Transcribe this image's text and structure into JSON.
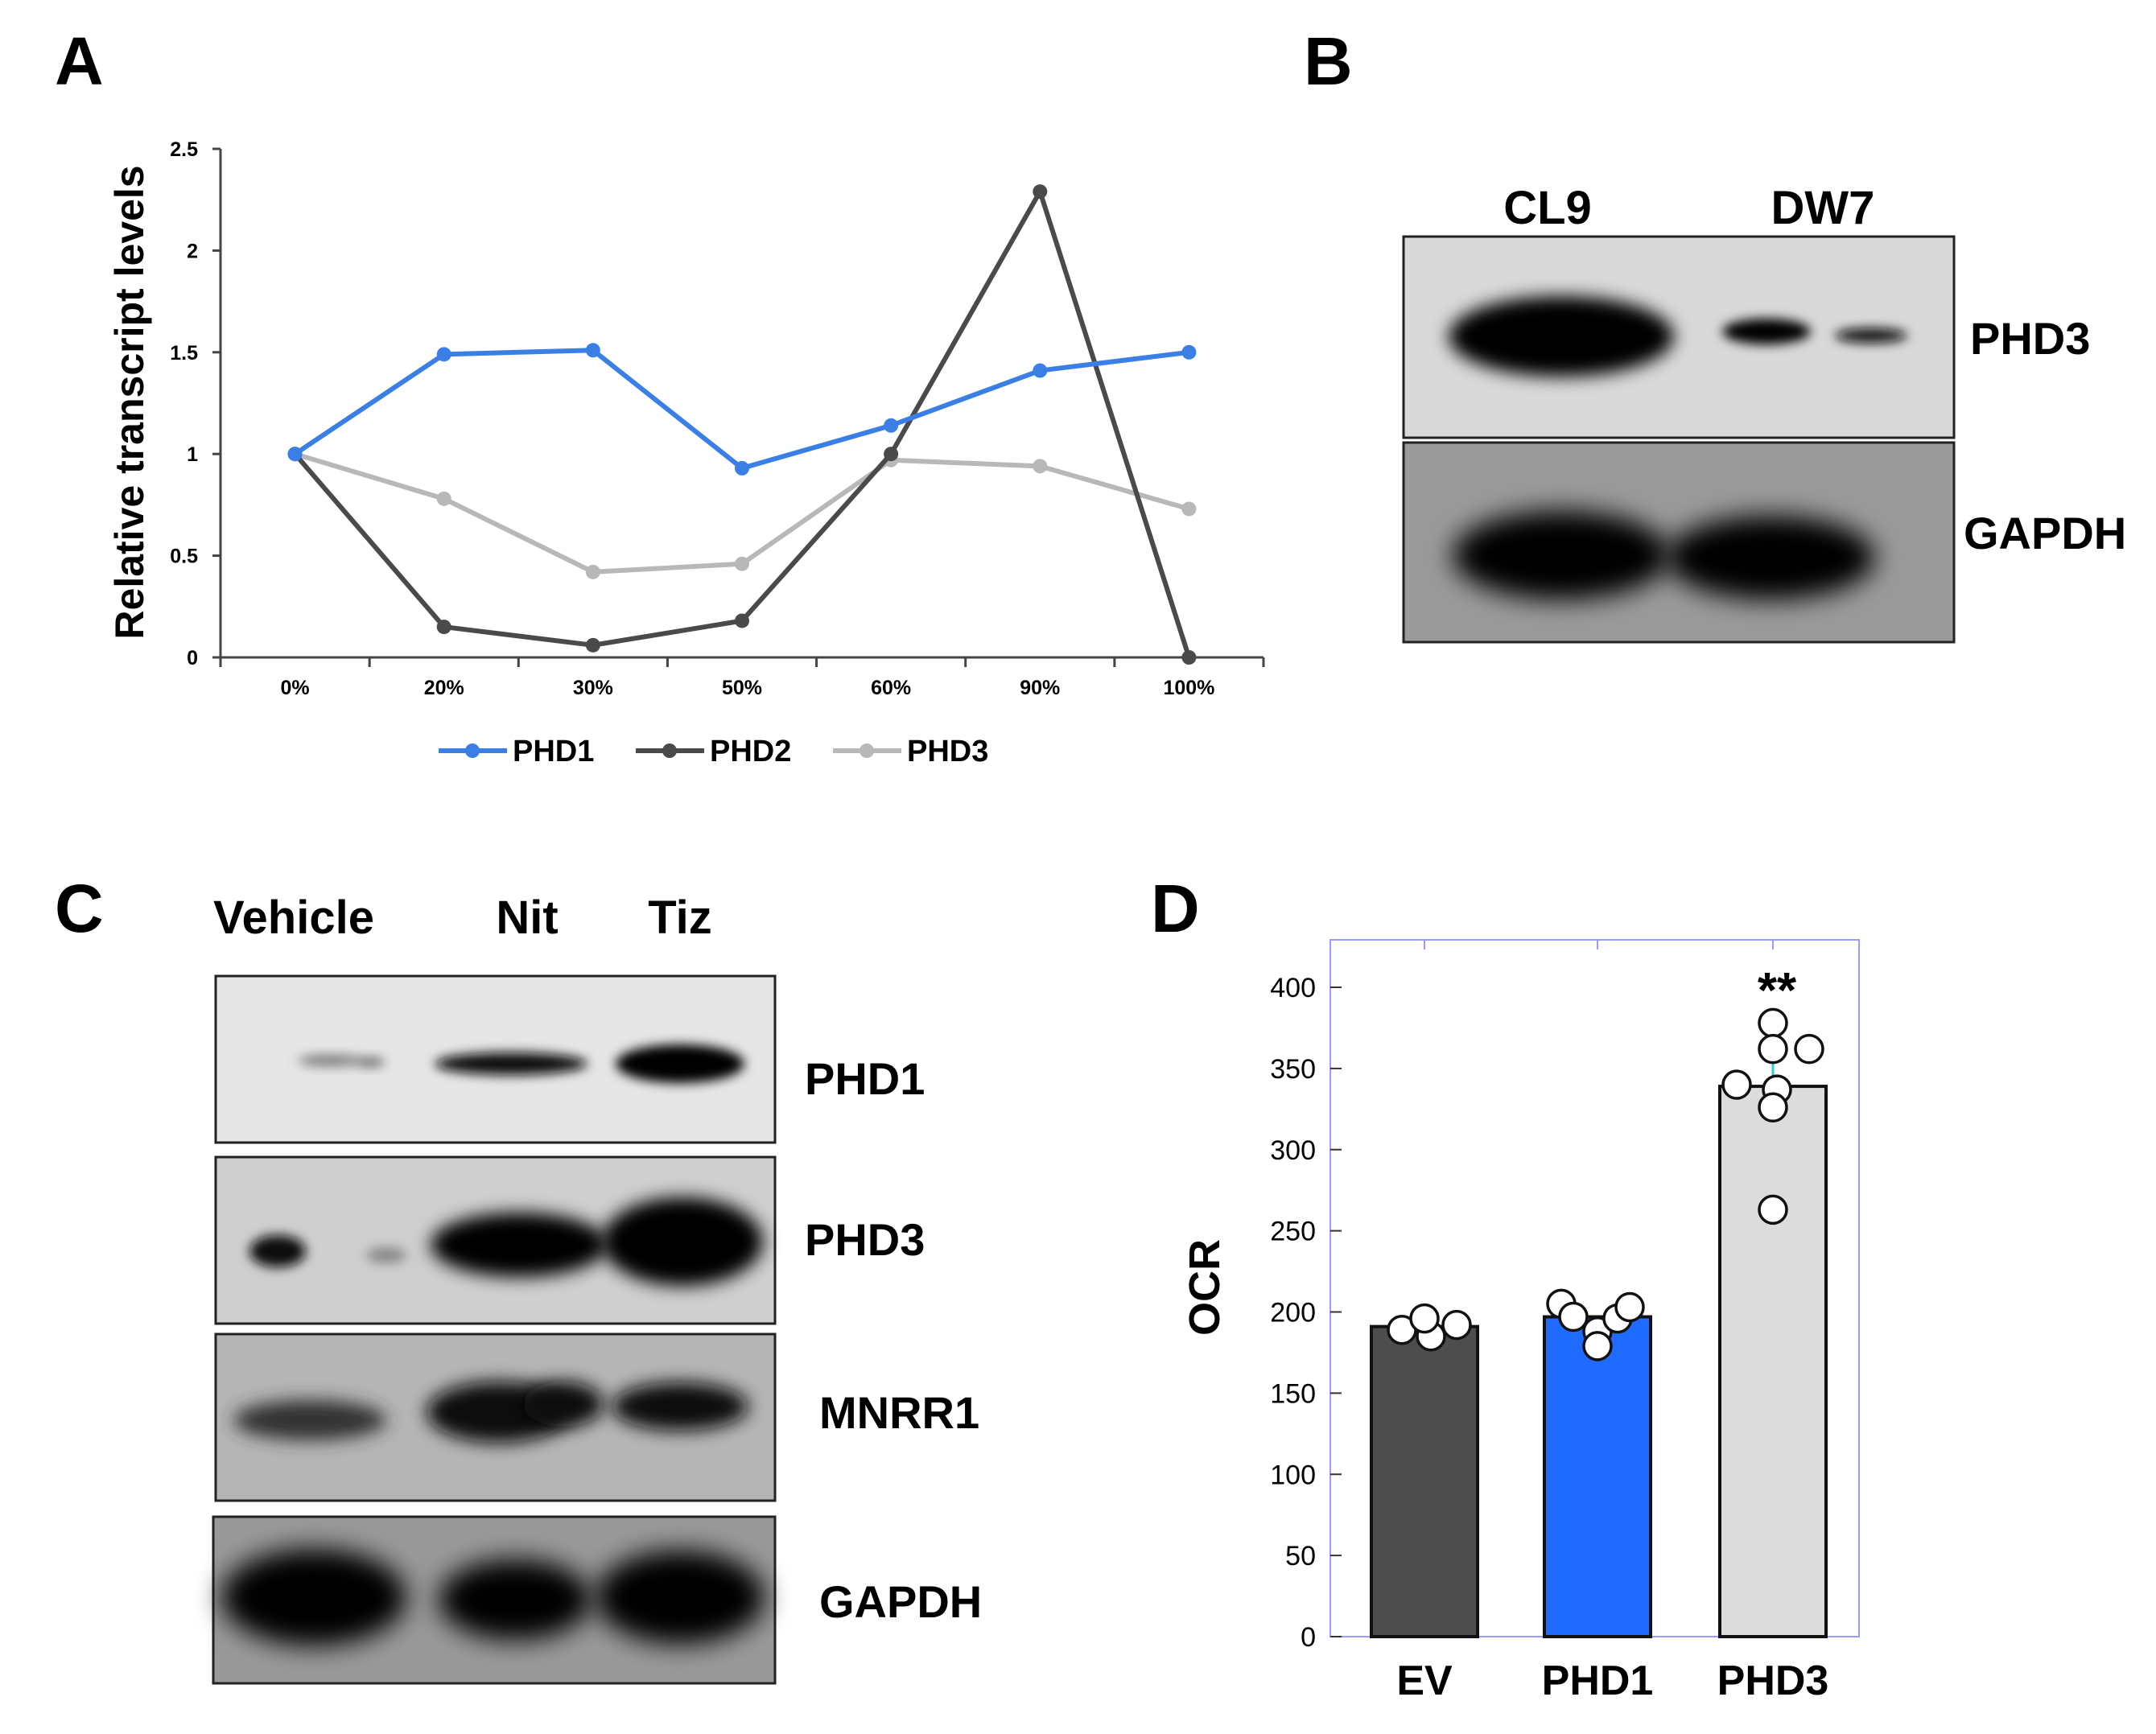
{
  "panels": {
    "A": "A",
    "B": "B",
    "C": "C",
    "D": "D"
  },
  "chart_data": [
    {
      "panel": "A",
      "type": "line",
      "categories": [
        "0%",
        "20%",
        "30%",
        "50%",
        "60%",
        "90%",
        "100%"
      ],
      "series": [
        {
          "name": "PHD1",
          "color": "#3a7fe6",
          "values": [
            1.0,
            1.49,
            1.51,
            0.93,
            1.14,
            1.41,
            1.5
          ]
        },
        {
          "name": "PHD2",
          "color": "#4a4a4a",
          "values": [
            1.0,
            0.15,
            0.06,
            0.18,
            1.0,
            2.29,
            0.0
          ]
        },
        {
          "name": "PHD3",
          "color": "#b8b8b8",
          "values": [
            1.0,
            0.78,
            0.42,
            0.46,
            0.97,
            0.94,
            0.73
          ]
        }
      ],
      "yticks": [
        "0",
        "0.5",
        "1",
        "1.5",
        "2",
        "2.5"
      ],
      "ylim": [
        0,
        2.5
      ],
      "ylabel": "Relative transcript levels",
      "xlabel": "",
      "legend": "bottom"
    },
    {
      "panel": "D",
      "type": "bar",
      "categories": [
        "EV",
        "PHD1",
        "PHD3"
      ],
      "values": [
        191,
        197,
        339
      ],
      "colors": [
        "#4d4d4d",
        "#1f6bff",
        "#dcdcdc"
      ],
      "points": [
        [
          189,
          185,
          196,
          192
        ],
        [
          205,
          197,
          188,
          179,
          196,
          203
        ],
        [
          378,
          362,
          340,
          337,
          263,
          362,
          326
        ]
      ],
      "errors": [
        0,
        0,
        20
      ],
      "yticks": [
        "0",
        "50",
        "100",
        "150",
        "200",
        "250",
        "300",
        "350",
        "400"
      ],
      "ylim": [
        0,
        400
      ],
      "ylabel": "OCR",
      "xlabel": "",
      "annotations": [
        {
          "category": "PHD3",
          "text": "**"
        }
      ]
    }
  ],
  "blot_b": {
    "lanes": [
      "CL9",
      "DW7"
    ],
    "rows": [
      {
        "label": "PHD3"
      },
      {
        "label": "GAPDH"
      }
    ]
  },
  "blot_c": {
    "lanes": [
      "Vehicle",
      "Nit",
      "Tiz"
    ],
    "rows": [
      {
        "label": "PHD1"
      },
      {
        "label": "PHD3"
      },
      {
        "label": "MNRR1"
      },
      {
        "label": "GAPDH"
      }
    ]
  }
}
